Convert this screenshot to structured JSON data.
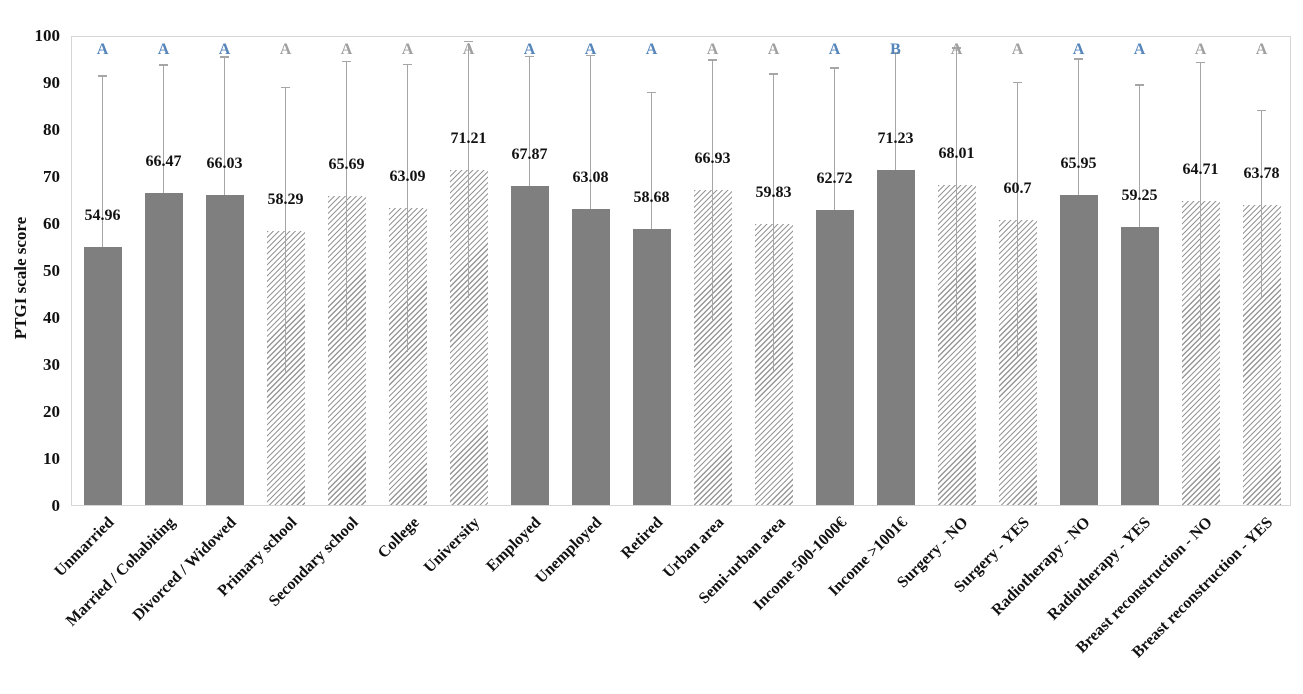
{
  "chart_data": {
    "type": "bar",
    "title": "",
    "xlabel": "",
    "ylabel": "PTGI scale score",
    "ylim": [
      0,
      100
    ],
    "yticks": [
      0,
      10,
      20,
      30,
      40,
      50,
      60,
      70,
      80,
      90,
      100
    ],
    "grid": false,
    "legend": false,
    "categories": [
      "Unmarried",
      "Married / Cohabiting",
      "Divorced / Widowed",
      "Primary school",
      "Secondary school",
      "College",
      "University",
      "Employed",
      "Unemployed",
      "Retired",
      "Urban area",
      "Semi-urban area",
      "Income 500-1000€",
      "Income >1001€",
      "Surgery - NO",
      "Surgery - YES",
      "Radiotherapy - NO",
      "Radiotherapy - YES",
      "Breast reconstruction - NO",
      "Breast reconstruction - YES"
    ],
    "values": [
      54.96,
      66.47,
      66.03,
      58.29,
      65.69,
      63.09,
      71.21,
      67.87,
      63.08,
      58.68,
      66.93,
      59.83,
      62.72,
      71.23,
      68.01,
      60.7,
      65.95,
      59.25,
      64.71,
      63.78
    ],
    "value_labels": [
      "54.96",
      "66.47",
      "66.03",
      "58.29",
      "65.69",
      "63.09",
      "71.21",
      "67.87",
      "63.08",
      "58.68",
      "66.93",
      "59.83",
      "62.72",
      "71.23",
      "68.01",
      "60.7",
      "65.95",
      "59.25",
      "64.71",
      "63.78"
    ],
    "error_sd": [
      36.1,
      27.0,
      29.1,
      30.4,
      28.5,
      30.5,
      27.2,
      27.4,
      32.4,
      28.9,
      27.6,
      31.7,
      30.1,
      24.8,
      29.0,
      29.0,
      28.8,
      29.9,
      29.3,
      20.0
    ],
    "bar_fill": [
      "solid",
      "solid",
      "solid",
      "hatched",
      "hatched",
      "hatched",
      "hatched",
      "solid",
      "solid",
      "solid",
      "hatched",
      "hatched",
      "solid",
      "solid",
      "hatched",
      "hatched",
      "solid",
      "solid",
      "hatched",
      "hatched"
    ],
    "letters": [
      "A",
      "A",
      "A",
      "A",
      "A",
      "A",
      "A",
      "A",
      "A",
      "A",
      "A",
      "A",
      "A",
      "B",
      "A",
      "A",
      "A",
      "A",
      "A",
      "A"
    ],
    "letter_colors": [
      "blue",
      "blue",
      "blue",
      "gray",
      "gray",
      "gray",
      "gray",
      "blue",
      "blue",
      "blue",
      "gray",
      "gray",
      "blue",
      "blue",
      "gray",
      "gray",
      "blue",
      "blue",
      "gray",
      "gray"
    ],
    "colors": {
      "solid_bar": "#7f7f7f",
      "hatch_line": "#979797",
      "error_bar": "#a6a6a6",
      "letter_blue": "#5585bb",
      "letter_gray": "#a0a0a0",
      "plot_border": "#d6d6d6",
      "text": "#111111"
    }
  }
}
